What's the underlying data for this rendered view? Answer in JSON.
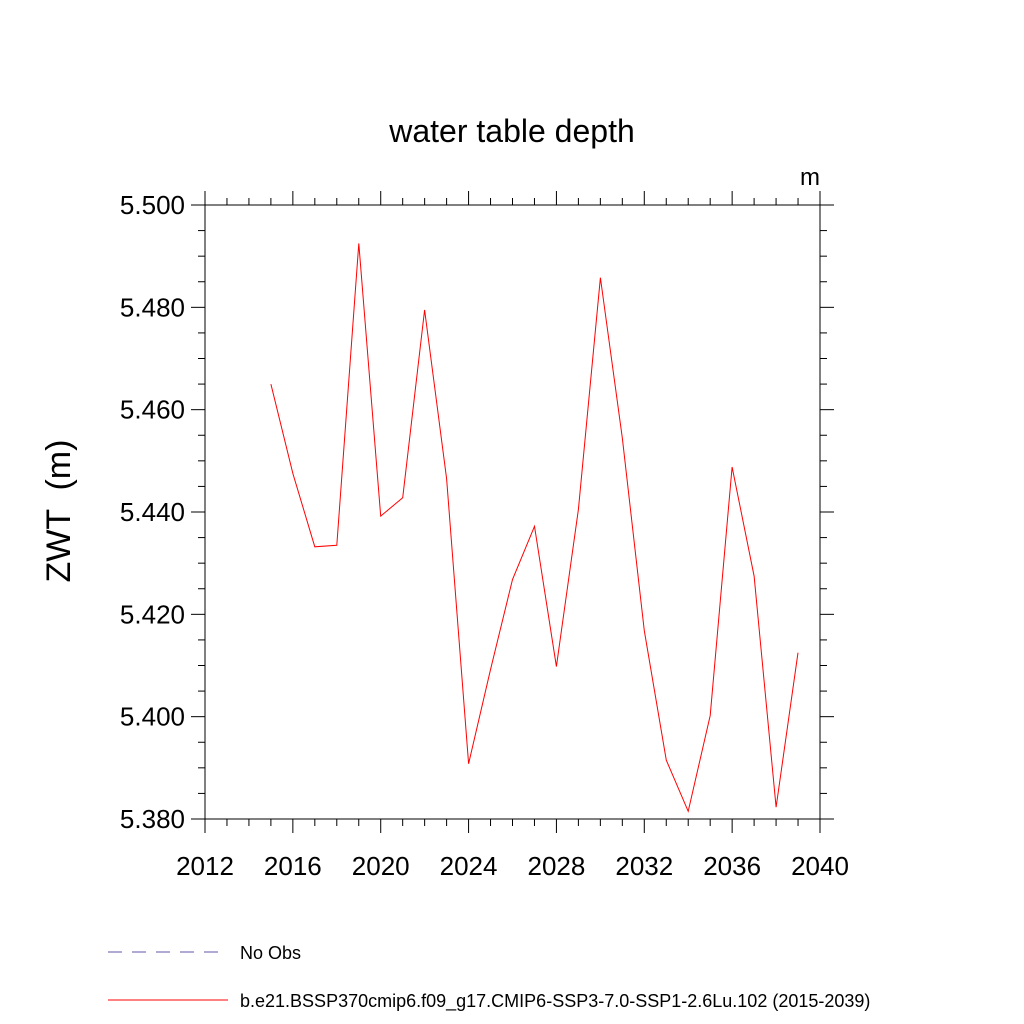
{
  "chart_data": {
    "type": "line",
    "title": "water table depth",
    "units_label": "m",
    "ylabel": "ZWT  (m)",
    "xlabel": "",
    "xlim": [
      2012,
      2040
    ],
    "ylim": [
      5.38,
      5.5
    ],
    "x_ticks": [
      2012,
      2016,
      2020,
      2024,
      2028,
      2032,
      2036,
      2040
    ],
    "x_tick_labels": [
      "2012",
      "2016",
      "2020",
      "2024",
      "2028",
      "2032",
      "2036",
      "2040"
    ],
    "y_ticks": [
      5.38,
      5.4,
      5.42,
      5.44,
      5.46,
      5.48,
      5.5
    ],
    "y_tick_labels": [
      "5.380",
      "5.400",
      "5.420",
      "5.440",
      "5.460",
      "5.480",
      "5.500"
    ],
    "grid": false,
    "series": [
      {
        "name": "b.e21.BSSP370cmip6.f09_g17.CMIP6-SSP3-7.0-SSP1-2.6Lu.102 (2015-2039)",
        "color": "#ff0000",
        "style": "solid",
        "x": [
          2015,
          2016,
          2017,
          2018,
          2019,
          2020,
          2021,
          2022,
          2023,
          2024,
          2025,
          2026,
          2027,
          2028,
          2029,
          2030,
          2031,
          2032,
          2033,
          2034,
          2035,
          2036,
          2037,
          2038,
          2039
        ],
        "values": [
          5.465,
          5.4475,
          5.4332,
          5.4335,
          5.4925,
          5.4392,
          5.4428,
          5.4795,
          5.4465,
          5.3908,
          5.4092,
          5.4268,
          5.4372,
          5.4098,
          5.4405,
          5.4858,
          5.4545,
          5.4168,
          5.3915,
          5.3815,
          5.4002,
          5.4488,
          5.4275,
          5.3823,
          5.4125
        ]
      }
    ],
    "legend": [
      {
        "label": "No Obs",
        "color": "#6655aa",
        "style": "dashed"
      },
      {
        "label": "b.e21.BSSP370cmip6.f09_g17.CMIP6-SSP3-7.0-SSP1-2.6Lu.102 (2015-2039)",
        "color": "#ff0000",
        "style": "solid"
      }
    ],
    "legend_position": "bottom-left"
  }
}
